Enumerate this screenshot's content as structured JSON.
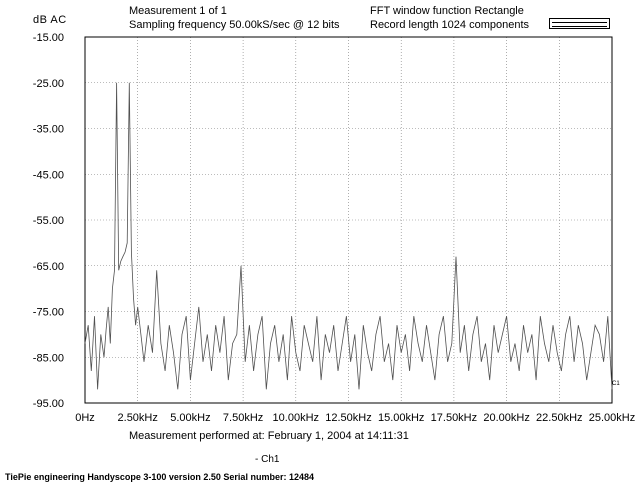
{
  "header": {
    "y_unit": "dB  AC",
    "measurement": "Measurement 1 of 1",
    "sampling": "Sampling frequency 50.00kS/sec @ 12 bits",
    "fft_window": "FFT window function Rectangle",
    "record_length": "Record length 1024 components"
  },
  "footer": {
    "measurement_time": "Measurement performed at:   February 1, 2004 at 14:11:31",
    "channel_legend": "- Ch1",
    "device_info": "TiePie engineering  Handyscope 3-100  version 2.50  Serial number: 12484"
  },
  "trace_label": "C1",
  "colors": {
    "trace": "#505050",
    "grid": "#7a7a7a",
    "axis": "#000000"
  },
  "chart_data": {
    "type": "line",
    "title": "",
    "xlabel": "",
    "ylabel": "dB  AC",
    "xlim": [
      0,
      25000
    ],
    "ylim": [
      -95,
      -15
    ],
    "x_unit": "Hz",
    "grid": true,
    "x_ticks": [
      0,
      2500,
      5000,
      7500,
      10000,
      12500,
      15000,
      17500,
      20000,
      22500,
      25000
    ],
    "x_tick_labels": [
      "0Hz",
      "2.50kHz",
      "5.00kHz",
      "7.50kHz",
      "10.00kHz",
      "12.50kHz",
      "15.00kHz",
      "17.50kHz",
      "20.00kHz",
      "22.50kHz",
      "25.00kHz"
    ],
    "y_ticks": [
      -15,
      -25,
      -35,
      -45,
      -55,
      -65,
      -75,
      -85,
      -95
    ],
    "y_tick_labels": [
      "-15.00",
      "-25.00",
      "-35.00",
      "-45.00",
      "-55.00",
      "-65.00",
      "-75.00",
      "-85.00",
      "-95.00"
    ],
    "series": [
      {
        "name": "Ch1",
        "x": [
          0,
          150,
          300,
          450,
          600,
          750,
          900,
          1000,
          1100,
          1200,
          1300,
          1400,
          1500,
          1600,
          1700,
          1800,
          1900,
          2000,
          2100,
          2200,
          2300,
          2400,
          2500,
          2650,
          2800,
          3000,
          3200,
          3400,
          3600,
          3800,
          4000,
          4200,
          4400,
          4600,
          4800,
          5000,
          5200,
          5400,
          5600,
          5800,
          6000,
          6200,
          6400,
          6600,
          6800,
          7000,
          7200,
          7400,
          7600,
          7800,
          8000,
          8200,
          8400,
          8600,
          8800,
          9000,
          9200,
          9400,
          9600,
          9800,
          10000,
          10200,
          10400,
          10600,
          10800,
          11000,
          11200,
          11400,
          11600,
          11800,
          12000,
          12200,
          12400,
          12600,
          12800,
          13000,
          13200,
          13400,
          13600,
          13800,
          14000,
          14200,
          14400,
          14600,
          14800,
          15000,
          15200,
          15400,
          15600,
          15800,
          16000,
          16200,
          16400,
          16600,
          16800,
          17000,
          17200,
          17400,
          17600,
          17800,
          18000,
          18200,
          18400,
          18600,
          18800,
          19000,
          19200,
          19400,
          19600,
          19800,
          20000,
          20200,
          20400,
          20600,
          20800,
          21000,
          21200,
          21400,
          21600,
          21800,
          22000,
          22200,
          22400,
          22600,
          22800,
          23000,
          23200,
          23400,
          23600,
          23800,
          24000,
          24200,
          24400,
          24600,
          24800,
          25000
        ],
        "values": [
          -82,
          -78,
          -88,
          -76,
          -92,
          -80,
          -85,
          -79,
          -74,
          -82,
          -70,
          -66,
          -25,
          -66,
          -64,
          -63,
          -62,
          -60,
          -25,
          -62,
          -72,
          -78,
          -74,
          -80,
          -86,
          -78,
          -84,
          -66,
          -82,
          -88,
          -78,
          -84,
          -92,
          -80,
          -76,
          -90,
          -82,
          -74,
          -86,
          -80,
          -88,
          -78,
          -84,
          -76,
          -90,
          -82,
          -80,
          -65,
          -86,
          -78,
          -88,
          -80,
          -76,
          -92,
          -82,
          -78,
          -86,
          -80,
          -90,
          -76,
          -84,
          -88,
          -78,
          -82,
          -86,
          -76,
          -90,
          -80,
          -84,
          -78,
          -88,
          -82,
          -76,
          -86,
          -80,
          -92,
          -78,
          -84,
          -88,
          -80,
          -76,
          -86,
          -82,
          -90,
          -78,
          -84,
          -80,
          -88,
          -76,
          -82,
          -86,
          -78,
          -84,
          -90,
          -80,
          -76,
          -86,
          -82,
          -63,
          -84,
          -78,
          -88,
          -80,
          -76,
          -86,
          -82,
          -90,
          -78,
          -84,
          -80,
          -76,
          -86,
          -82,
          -88,
          -78,
          -84,
          -80,
          -90,
          -76,
          -82,
          -86,
          -78,
          -84,
          -88,
          -80,
          -76,
          -86,
          -78,
          -82,
          -90,
          -84,
          -78,
          -80,
          -86,
          -76,
          -92
        ]
      }
    ]
  }
}
